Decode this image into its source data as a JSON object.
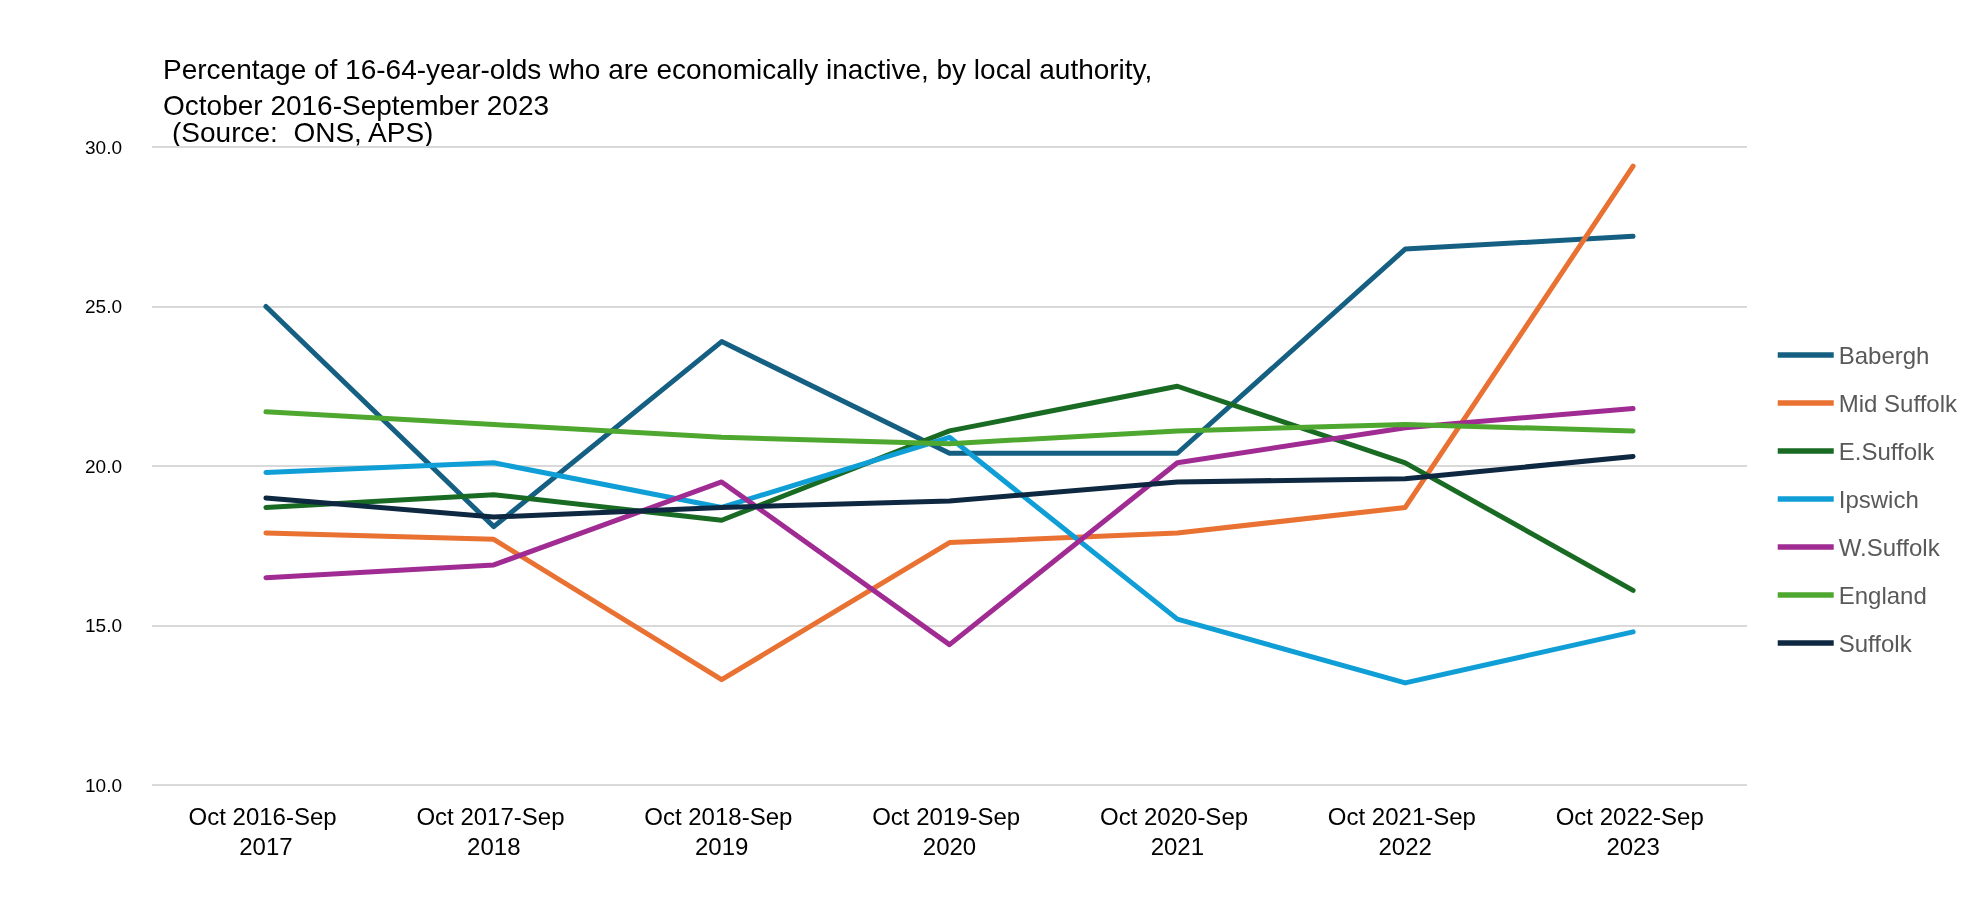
{
  "chart_data": {
    "type": "line",
    "title": "Percentage of 16-64-year-olds who are economically inactive, by local authority, October 2016-September 2023",
    "annotations": [
      "(Source:  ONS, APS)"
    ],
    "categories": [
      "Oct 2016-Sep 2017",
      "Oct 2017-Sep 2018",
      "Oct 2018-Sep 2019",
      "Oct 2019-Sep 2020",
      "Oct 2020-Sep 2021",
      "Oct 2021-Sep 2022",
      "Oct 2022-Sep 2023"
    ],
    "series": [
      {
        "name": "Babergh",
        "color": "#156082",
        "values": [
          25.0,
          18.1,
          23.9,
          20.4,
          20.4,
          26.8,
          27.2
        ]
      },
      {
        "name": "Mid Suffolk",
        "color": "#e97132",
        "values": [
          17.9,
          17.7,
          13.3,
          17.6,
          17.9,
          18.7,
          29.4
        ]
      },
      {
        "name": "E.Suffolk",
        "color": "#196b24",
        "values": [
          18.7,
          19.1,
          18.3,
          21.1,
          22.5,
          20.1,
          16.1
        ]
      },
      {
        "name": "Ipswich",
        "color": "#0f9ed5",
        "values": [
          19.8,
          20.1,
          18.7,
          20.9,
          15.2,
          13.2,
          14.8
        ]
      },
      {
        "name": "W.Suffolk",
        "color": "#a02b93",
        "values": [
          16.5,
          16.9,
          19.5,
          14.4,
          20.1,
          21.2,
          21.8
        ]
      },
      {
        "name": "England",
        "color": "#4ea72e",
        "values": [
          21.7,
          21.3,
          20.9,
          20.7,
          21.1,
          21.3,
          21.1
        ]
      },
      {
        "name": "Suffolk",
        "color": "#0e2841",
        "values": [
          19.0,
          18.4,
          18.7,
          18.9,
          19.5,
          19.6,
          20.3
        ]
      }
    ],
    "ylim": [
      10,
      30
    ],
    "yticks": [
      {
        "value": 10,
        "label": "10.0"
      },
      {
        "value": 15,
        "label": "15.0"
      },
      {
        "value": 20,
        "label": "20.0"
      },
      {
        "value": 25,
        "label": "25.0"
      },
      {
        "value": 30,
        "label": "30.0"
      }
    ],
    "grid": "y",
    "legend": "right",
    "marker": "none",
    "line_style": "solid"
  }
}
